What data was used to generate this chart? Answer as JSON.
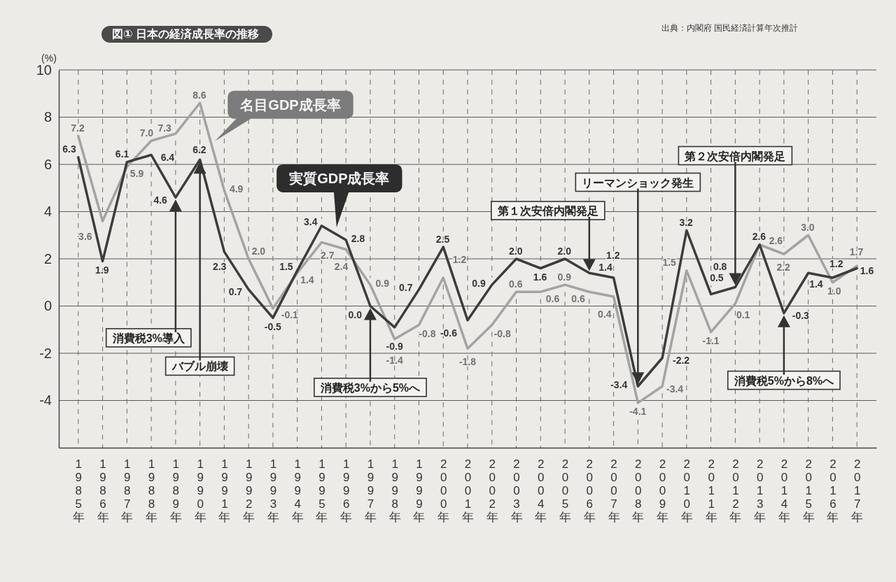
{
  "chart_data": {
    "type": "line",
    "title": "図① 日本の経済成長率の推移",
    "ylabel": "(%)",
    "categories": [
      "1985年",
      "1986年",
      "1987年",
      "1988年",
      "1989年",
      "1990年",
      "1991年",
      "1992年",
      "1993年",
      "1994年",
      "1995年",
      "1996年",
      "1997年",
      "1998年",
      "1999年",
      "2000年",
      "2001年",
      "2002年",
      "2003年",
      "2004年",
      "2005年",
      "2006年",
      "2007年",
      "2008年",
      "2009年",
      "2010年",
      "2011年",
      "2012年",
      "2013年",
      "2014年",
      "2015年",
      "2016年",
      "2017年"
    ],
    "series": [
      {
        "name": "実質GDP成長率",
        "color": "#3c3c3c",
        "values": [
          6.3,
          1.9,
          6.1,
          6.4,
          4.6,
          6.2,
          2.3,
          0.7,
          -0.5,
          1.5,
          3.4,
          2.8,
          0.0,
          -0.9,
          0.7,
          2.5,
          -0.6,
          0.9,
          2.0,
          1.6,
          2.0,
          1.4,
          1.2,
          -3.4,
          -2.2,
          3.2,
          0.5,
          0.8,
          2.6,
          -0.3,
          1.4,
          1.2,
          1.6
        ],
        "value_labels": [
          "6.3",
          "1.9",
          "6.1",
          "6.4",
          "4.6",
          "6.2",
          "2.3",
          "0.7",
          "-0.5",
          "1.5",
          "3.4",
          "2.8",
          "0.0",
          "-0.9",
          "0.7",
          "2.5",
          "-0.6",
          "0.9",
          "2.0",
          "1.6",
          "2.0",
          "1.4",
          "1.2",
          "-3.4",
          "-2.2",
          "3.2",
          "0.5",
          "0.8",
          "2.6",
          "-0.3",
          "1.4",
          "1.2",
          "1.6"
        ]
      },
      {
        "name": "名目GDP成長率",
        "color": "#a3a3a3",
        "values": [
          7.2,
          3.6,
          5.9,
          7.0,
          7.3,
          8.6,
          4.9,
          2.0,
          -0.1,
          1.4,
          2.7,
          2.4,
          0.9,
          -1.4,
          -0.8,
          1.2,
          -1.8,
          -0.8,
          0.6,
          0.6,
          0.9,
          0.6,
          0.4,
          -4.1,
          -3.4,
          1.5,
          -1.1,
          0.1,
          2.6,
          2.2,
          3.0,
          1.0,
          1.7
        ],
        "value_labels": [
          "7.2",
          "3.6",
          "5.9",
          "7.0",
          "7.3",
          "8.6",
          "4.9",
          "2.0",
          "-0.1",
          "1.4",
          "2.7",
          "2.4",
          "0.9",
          "-1.4",
          "-0.8",
          "1.2",
          "-1.8",
          "-0.8",
          "0.6",
          "0.6",
          "0.9",
          "0.6",
          "0.4",
          "-4.1",
          "-3.4",
          "1.5",
          "-1.1",
          "0.1",
          "2.6",
          "2.2",
          "3.0",
          "1.0",
          "1.7"
        ]
      }
    ],
    "ylim": [
      -6,
      10
    ],
    "yticks": [
      -4,
      -2,
      0,
      2,
      4,
      6,
      8,
      10
    ],
    "grid": true,
    "line_style": "solid",
    "annotations": [
      "出典：内閣府 国民経済計算年次推計",
      {
        "text": "消費税3%導入",
        "x": "1989年",
        "y": 4.6
      },
      {
        "text": "バブル崩壊",
        "x": "1990年",
        "y": 6.2
      },
      {
        "text": "消費税3%から5%へ",
        "x": "1997年",
        "y": 0.0
      },
      {
        "text": "第１次安倍内閣発足",
        "x": "2006年",
        "y": 1.4
      },
      {
        "text": "リーマンショック発生",
        "x": "2008年",
        "y": -3.4
      },
      {
        "text": "第２次安倍内閣発足",
        "x": "2012年",
        "y": 0.8
      },
      {
        "text": "消費税5%から8%へ",
        "x": "2014年",
        "y": -0.3
      }
    ]
  }
}
